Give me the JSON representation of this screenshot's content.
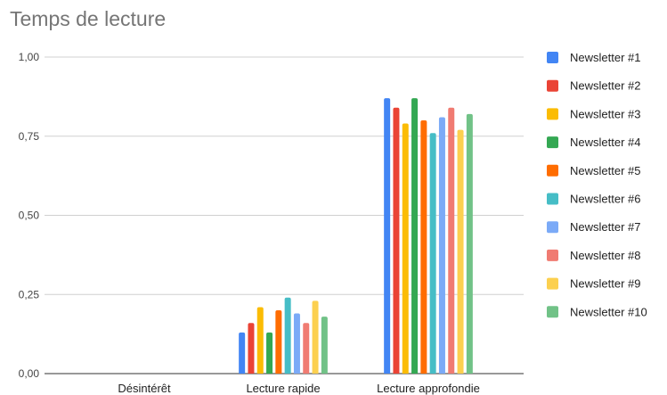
{
  "chart_data": {
    "type": "bar",
    "title": "Temps de lecture",
    "categories": [
      "Désintérêt",
      "Lecture rapide",
      "Lecture approfondie"
    ],
    "ylim": [
      0,
      1
    ],
    "yticks": [
      "0,00",
      "0,25",
      "0,50",
      "0,75",
      "1,00"
    ],
    "ytick_values": [
      0,
      0.25,
      0.5,
      0.75,
      1.0
    ],
    "grid": true,
    "legend_position": "right",
    "series": [
      {
        "name": "Newsletter #1",
        "color": "#4285F4",
        "values": [
          0,
          0.13,
          0.87
        ]
      },
      {
        "name": "Newsletter #2",
        "color": "#EA4335",
        "values": [
          0,
          0.16,
          0.84
        ]
      },
      {
        "name": "Newsletter #3",
        "color": "#FBBC04",
        "values": [
          0,
          0.21,
          0.79
        ]
      },
      {
        "name": "Newsletter #4",
        "color": "#34A853",
        "values": [
          0,
          0.13,
          0.87
        ]
      },
      {
        "name": "Newsletter #5",
        "color": "#FF6D01",
        "values": [
          0,
          0.2,
          0.8
        ]
      },
      {
        "name": "Newsletter #6",
        "color": "#46BDC6",
        "values": [
          0,
          0.24,
          0.76
        ]
      },
      {
        "name": "Newsletter #7",
        "color": "#7BAAF7",
        "values": [
          0,
          0.19,
          0.81
        ]
      },
      {
        "name": "Newsletter #8",
        "color": "#F07B72",
        "values": [
          0,
          0.16,
          0.84
        ]
      },
      {
        "name": "Newsletter #9",
        "color": "#FCD04F",
        "values": [
          0,
          0.23,
          0.77
        ]
      },
      {
        "name": "Newsletter #10",
        "color": "#71C287",
        "values": [
          0,
          0.18,
          0.82
        ]
      }
    ]
  }
}
